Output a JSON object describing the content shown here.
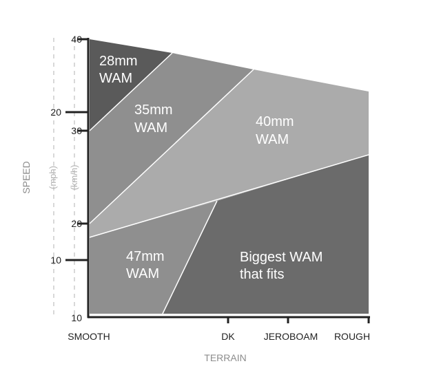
{
  "chart_data": {
    "type": "area",
    "xlabel": "TERRAIN",
    "ylabel": "SPEED",
    "x_categories": [
      "SMOOTH",
      "DK",
      "JEROBOAM",
      "ROUGH"
    ],
    "y_axes": [
      {
        "unit": "(km/h)",
        "ticks": [
          10,
          20,
          30,
          40
        ]
      },
      {
        "unit": "(mph)",
        "ticks": [
          10,
          20
        ]
      }
    ],
    "regions": [
      {
        "label": [
          "28mm",
          "WAM"
        ],
        "color": "#5a5a5a"
      },
      {
        "label": [
          "35mm",
          "WAM"
        ],
        "color": "#8f8f8f"
      },
      {
        "label": [
          "40mm",
          "WAM"
        ],
        "color": "#ababab"
      },
      {
        "label": [
          "47mm",
          "WAM"
        ],
        "color": "#8f8f8f"
      },
      {
        "label": [
          "Biggest WAM",
          "that fits"
        ],
        "color": "#6b6b6b"
      }
    ],
    "colors": {
      "axis": "#222222",
      "dashed_axis": "#cccccc",
      "divider": "#ffffff"
    }
  }
}
